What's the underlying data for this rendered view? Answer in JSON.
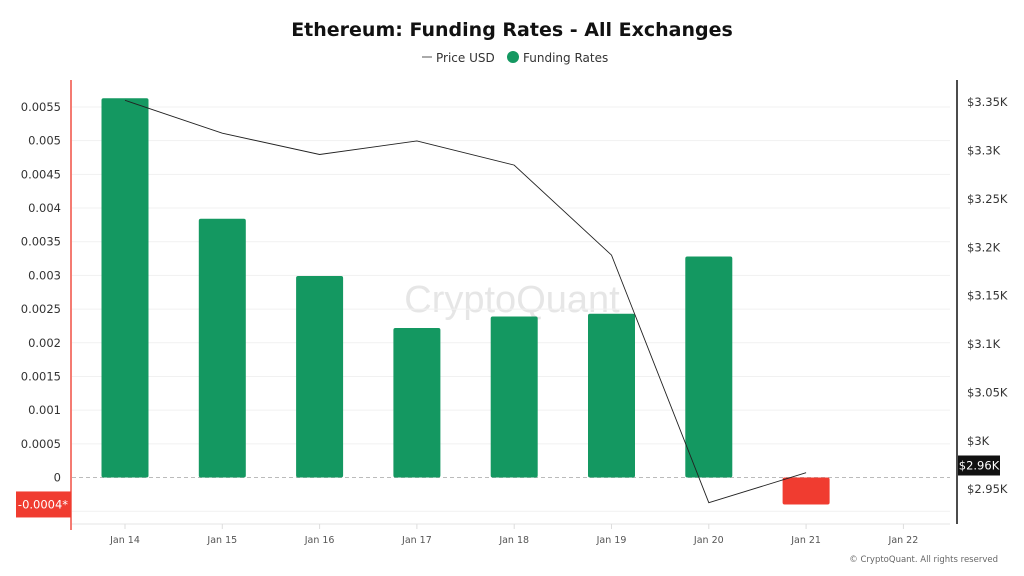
{
  "chart_data": {
    "type": "bar",
    "title": "Ethereum: Funding Rates - All Exchanges",
    "categories": [
      "Jan 14",
      "Jan 15",
      "Jan 16",
      "Jan 17",
      "Jan 18",
      "Jan 19",
      "Jan 20",
      "Jan 21",
      "Jan 22"
    ],
    "series": [
      {
        "name": "Funding Rates",
        "type": "bar",
        "axis": "left",
        "values": [
          0.00563,
          0.00384,
          0.00299,
          0.00222,
          0.00239,
          0.00243,
          0.00328,
          -0.0004,
          null
        ],
        "color_positive": "#149861",
        "color_negative": "#f03c30"
      },
      {
        "name": "Price USD",
        "type": "line",
        "axis": "right",
        "values": [
          3352,
          3318,
          3296,
          3310,
          3285,
          3192,
          2936,
          2967,
          null
        ],
        "color": "#222222"
      }
    ],
    "left_axis": {
      "ticks": [
        "0",
        "0.0005",
        "0.001",
        "0.0015",
        "0.002",
        "0.0025",
        "0.003",
        "0.0035",
        "0.004",
        "0.0045",
        "0.005",
        "0.0055"
      ],
      "tick_values": [
        0,
        0.0005,
        0.001,
        0.0015,
        0.002,
        0.0025,
        0.003,
        0.0035,
        0.004,
        0.0045,
        0.005,
        0.0055
      ],
      "ylim": [
        -0.00069,
        0.0059
      ],
      "current_label": "-0.0004*",
      "current_value": -0.0004,
      "current_color": "#f03c30"
    },
    "right_axis": {
      "ticks": [
        "$2.95K",
        "$3K",
        "$3.05K",
        "$3.1K",
        "$3.15K",
        "$3.2K",
        "$3.25K",
        "$3.3K",
        "$3.35K"
      ],
      "tick_values": [
        2950,
        3000,
        3050,
        3100,
        3150,
        3200,
        3250,
        3300,
        3350
      ],
      "ylim": [
        2914,
        3373
      ],
      "current_label": "$2.96K",
      "current_value": 2960
    },
    "legend": {
      "placement": "top-center",
      "items": [
        "Price USD",
        "Funding Rates"
      ]
    },
    "grid": true,
    "watermark": "CryptoQuant",
    "copyright": "© CryptoQuant. All rights reserved"
  }
}
